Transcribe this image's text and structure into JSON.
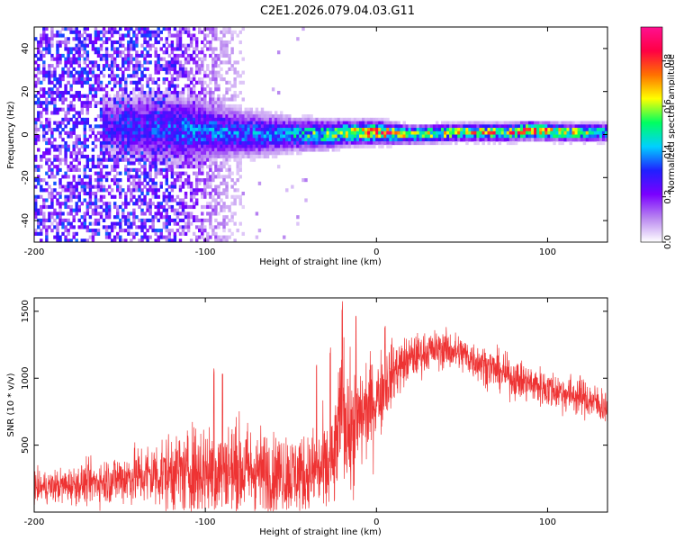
{
  "chart_data": [
    {
      "type": "heatmap",
      "title": "C2E1.2026.079.04.03.G11",
      "xlabel": "Height of straight line (km)",
      "ylabel": "Frequency (Hz)",
      "xlim": [
        -200,
        135
      ],
      "ylim": [
        -50,
        50
      ],
      "xticks": [
        -200,
        -100,
        0,
        100
      ],
      "xtick_labels": [
        "-200",
        "-100",
        "0",
        "100"
      ],
      "yticks": [
        -40,
        -20,
        0,
        20,
        40
      ],
      "ytick_labels": [
        "-40",
        "-20",
        "0",
        "20",
        "40"
      ],
      "colorbar": {
        "label": "Normalized spectral amplitude",
        "range": [
          0,
          0.95
        ],
        "ticks": [
          0,
          0.2,
          0.4,
          0.6,
          0.8
        ],
        "tick_labels": [
          "0.0",
          "0.2",
          "0.4",
          "0.6",
          "0.8"
        ],
        "colors": [
          "#ffffff",
          "#b987f0",
          "#7a00ff",
          "#2020ff",
          "#00d0ff",
          "#00ff60",
          "#ffff00",
          "#ff7000",
          "#ff0044",
          "#ff1090"
        ]
      },
      "ridge": [
        {
          "x": -155,
          "f": 4,
          "width": 10,
          "amp": 0.3
        },
        {
          "x": -130,
          "f": 3,
          "width": 12,
          "amp": 0.35
        },
        {
          "x": -110,
          "f": 2,
          "width": 12,
          "amp": 0.4
        },
        {
          "x": -90,
          "f": 1,
          "width": 9,
          "amp": 0.4
        },
        {
          "x": -70,
          "f": 0,
          "width": 8,
          "amp": 0.4
        },
        {
          "x": -50,
          "f": 0,
          "width": 6,
          "amp": 0.45
        },
        {
          "x": -30,
          "f": 0,
          "width": 5,
          "amp": 0.6
        },
        {
          "x": -10,
          "f": 1,
          "width": 4,
          "amp": 0.75
        },
        {
          "x": 0,
          "f": 1,
          "width": 4,
          "amp": 0.85
        },
        {
          "x": 20,
          "f": 0,
          "width": 3,
          "amp": 0.7
        },
        {
          "x": 50,
          "f": 1,
          "width": 3,
          "amp": 0.7
        },
        {
          "x": 80,
          "f": 1,
          "width": 3,
          "amp": 0.75
        },
        {
          "x": 90,
          "f": 2,
          "width": 3,
          "amp": 0.9
        },
        {
          "x": 110,
          "f": 1,
          "width": 3,
          "amp": 0.7
        },
        {
          "x": 135,
          "f": 1,
          "width": 3,
          "amp": 0.6
        }
      ]
    },
    {
      "type": "line",
      "xlabel": "Height of straight line (km)",
      "ylabel": "SNR (10 * v/v)",
      "xlim": [
        -200,
        135
      ],
      "ylim": [
        0,
        1600
      ],
      "xticks": [
        -200,
        -100,
        0,
        100
      ],
      "xtick_labels": [
        "-200",
        "-100",
        "0",
        "100"
      ],
      "yticks": [
        500,
        1000,
        1500
      ],
      "ytick_labels": [
        "500",
        "1000",
        "1500"
      ],
      "color": "#ee3333",
      "envelope": {
        "x": [
          -200,
          -180,
          -160,
          -140,
          -120,
          -100,
          -80,
          -60,
          -40,
          -25,
          -20,
          -15,
          -10,
          0,
          10,
          20,
          30,
          40,
          50,
          60,
          80,
          100,
          120,
          135
        ],
        "mean": [
          180,
          200,
          230,
          270,
          290,
          310,
          310,
          290,
          280,
          330,
          800,
          550,
          700,
          850,
          1050,
          1150,
          1200,
          1220,
          1180,
          1120,
          1000,
          920,
          860,
          780
        ],
        "spread": [
          100,
          120,
          150,
          200,
          260,
          320,
          330,
          280,
          260,
          350,
          450,
          400,
          350,
          300,
          200,
          150,
          130,
          130,
          130,
          130,
          130,
          130,
          130,
          120
        ]
      },
      "spikes": [
        {
          "x": -95,
          "y": 1080
        },
        {
          "x": -90,
          "y": 1050
        },
        {
          "x": -35,
          "y": 1120
        },
        {
          "x": -27,
          "y": 1250
        },
        {
          "x": -20,
          "y": 1600
        },
        {
          "x": -12,
          "y": 1470
        },
        {
          "x": 5,
          "y": 1460
        }
      ]
    }
  ]
}
